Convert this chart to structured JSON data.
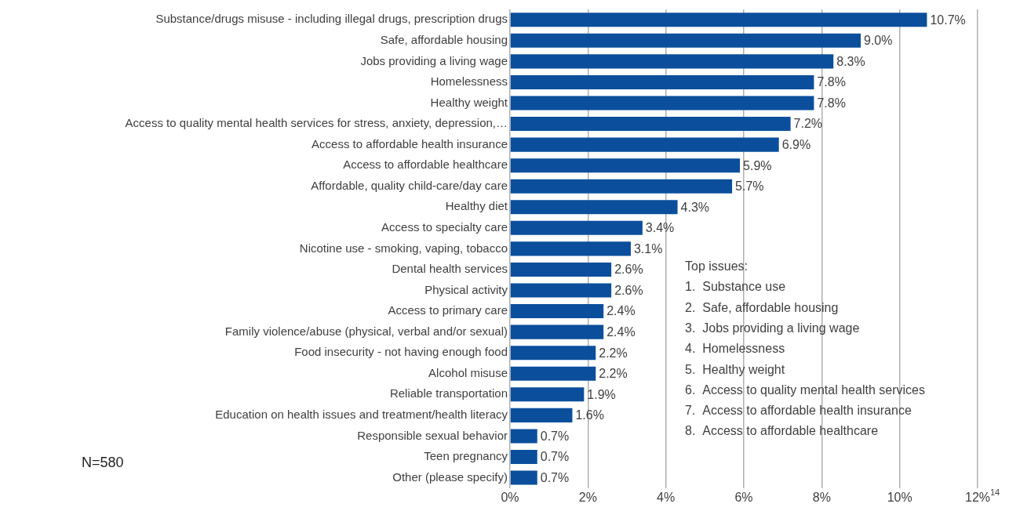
{
  "chart_data": {
    "type": "bar",
    "orientation": "horizontal",
    "categories": [
      "Substance/drugs misuse - including illegal drugs, prescription drugs",
      "Safe, affordable housing",
      "Jobs providing a living wage",
      "Homelessness",
      "Healthy weight",
      "Access to quality mental health services for stress, anxiety, depression,…",
      "Access to affordable health insurance",
      "Access to affordable healthcare",
      "Affordable, quality child-care/day care",
      "Healthy diet",
      "Access to specialty care",
      "Nicotine use - smoking, vaping, tobacco",
      "Dental health services",
      "Physical activity",
      "Access to primary care",
      "Family violence/abuse (physical, verbal and/or sexual)",
      "Food insecurity - not having enough food",
      "Alcohol misuse",
      "Reliable transportation",
      "Education on health issues and treatment/health literacy",
      "Responsible sexual behavior",
      "Teen pregnancy",
      "Other (please specify)"
    ],
    "values": [
      10.7,
      9.0,
      8.3,
      7.8,
      7.8,
      7.2,
      6.9,
      5.9,
      5.7,
      4.3,
      3.4,
      3.1,
      2.6,
      2.6,
      2.4,
      2.4,
      2.2,
      2.2,
      1.9,
      1.6,
      0.7,
      0.7,
      0.7
    ],
    "value_labels": [
      "10.7%",
      "9.0%",
      "8.3%",
      "7.8%",
      "7.8%",
      "7.2%",
      "6.9%",
      "5.9%",
      "5.7%",
      "4.3%",
      "3.4%",
      "3.1%",
      "2.6%",
      "2.6%",
      "2.4%",
      "2.4%",
      "2.2%",
      "2.2%",
      "1.9%",
      "1.6%",
      "0.7%",
      "0.7%",
      "0.7%"
    ],
    "color": "#0b4f9c",
    "xlim": [
      0,
      12
    ],
    "xticks": [
      {
        "value": 0,
        "label": "0%"
      },
      {
        "value": 2,
        "label": "2%"
      },
      {
        "value": 4,
        "label": "4%"
      },
      {
        "value": 6,
        "label": "6%"
      },
      {
        "value": 8,
        "label": "8%"
      },
      {
        "value": 10,
        "label": "10%"
      },
      {
        "value": 12,
        "label": "12%"
      }
    ],
    "grid": "x",
    "legend": false,
    "annotations": [
      "Top issues:",
      "1.  Substance use",
      "2.  Safe, affordable housing",
      "3.  Jobs providing a living wage",
      "4.  Homelessness",
      "5.  Healthy weight",
      "6.  Access to quality mental health services",
      "7.  Access to affordable health insurance",
      "8.  Access to affordable healthcare",
      "N=580",
      "14"
    ]
  }
}
